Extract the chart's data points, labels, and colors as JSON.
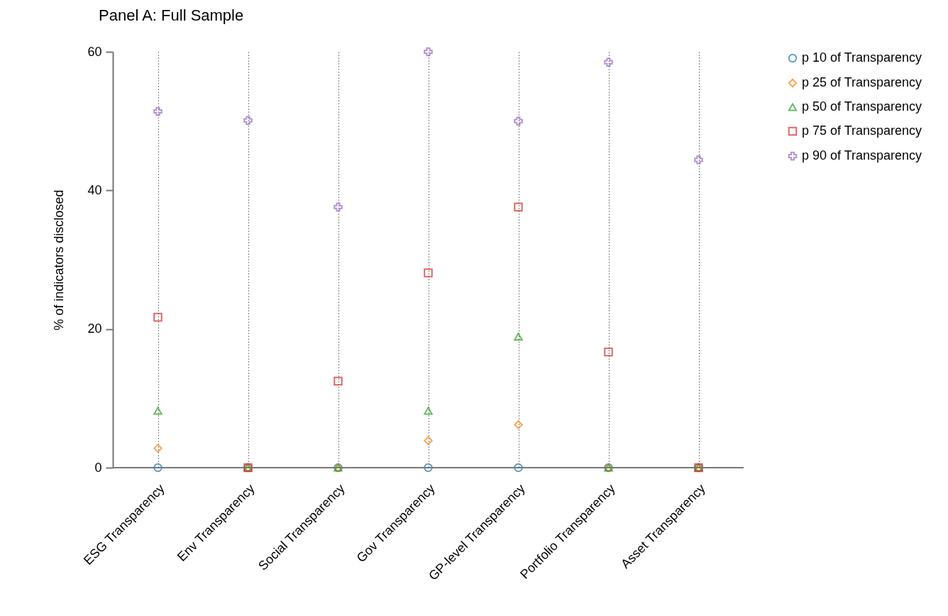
{
  "chart_data": {
    "type": "scatter",
    "title": "Panel A: Full Sample",
    "ylabel": "% of indicators disclosed",
    "categories": [
      "ESG Transparency",
      "Env Transparency",
      "Social Transparency",
      "Gov Transparency",
      "GP-level Transparency",
      "Portfolio Transparency",
      "Asset Transparency"
    ],
    "series": [
      {
        "name": "p 10 of Transparency",
        "color": "#1f77b4",
        "marker": "circle",
        "values": [
          0,
          0,
          0,
          0,
          0,
          0,
          0
        ]
      },
      {
        "name": "p 25 of Transparency",
        "color": "#ff7f0e",
        "marker": "diamond",
        "values": [
          2.8,
          0,
          0,
          3.9,
          6.2,
          0,
          0
        ]
      },
      {
        "name": "p 50 of Transparency",
        "color": "#2ca02c",
        "marker": "triangle",
        "values": [
          8.2,
          0,
          0,
          8.2,
          18.9,
          0,
          0
        ]
      },
      {
        "name": "p 75 of Transparency",
        "color": "#d62728",
        "marker": "square",
        "values": [
          21.7,
          0,
          12.5,
          28.1,
          37.6,
          16.7,
          0
        ]
      },
      {
        "name": "p 90 of Transparency",
        "color": "#9467bd",
        "marker": "cross",
        "values": [
          51.4,
          50.1,
          37.6,
          60,
          50,
          58.5,
          44.4
        ]
      }
    ],
    "ylim": [
      0,
      60
    ],
    "yticks": [
      0,
      20,
      40,
      60
    ],
    "grid": "x",
    "legend": "right"
  }
}
